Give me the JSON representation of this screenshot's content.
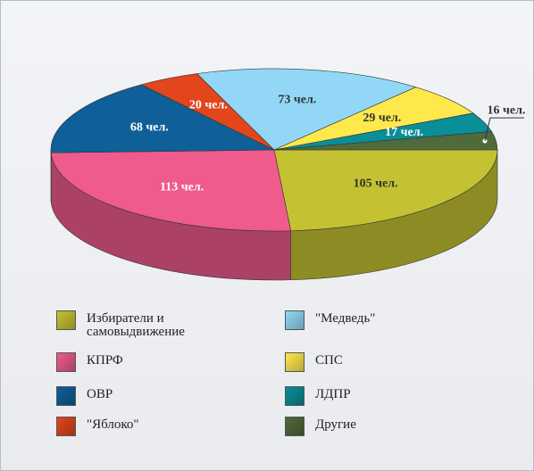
{
  "chart_data": {
    "type": "pie",
    "categories": [
      "Избиратели и самовыдвижение",
      "КПРФ",
      "ОВР",
      "\"Яблоко\"",
      "\"Медведь\"",
      "СПС",
      "ЛДПР",
      "Другие"
    ],
    "values": [
      105,
      113,
      68,
      20,
      73,
      29,
      17,
      16
    ],
    "value_labels": [
      "105 чел.",
      "113 чел.",
      "68 чел.",
      "20 чел.",
      "73 чел.",
      "29 чел.",
      "17 чел.",
      "16 чел."
    ],
    "colors": [
      "#c4c232",
      "#ee5b8c",
      "#0f5f98",
      "#e3451c",
      "#92d8f6",
      "#ffe84c",
      "#0a8e98",
      "#4f6a3b"
    ]
  }
}
